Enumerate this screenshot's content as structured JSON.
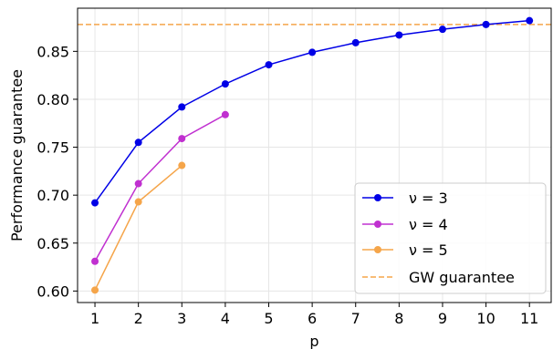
{
  "chart_data": {
    "type": "line",
    "xlabel": "p",
    "ylabel": "Performance guarantee",
    "x_ticks": [
      1,
      2,
      3,
      4,
      5,
      6,
      7,
      8,
      9,
      10,
      11
    ],
    "y_ticks": [
      0.6,
      0.65,
      0.7,
      0.75,
      0.8,
      0.85
    ],
    "xlim": [
      0.6,
      11.5
    ],
    "ylim": [
      0.588,
      0.895
    ],
    "grid": true,
    "legend_position": "bottom-right",
    "series": [
      {
        "name": "ν = 3",
        "color": "#0000e6",
        "marker": "circle",
        "x": [
          1,
          2,
          3,
          4,
          5,
          6,
          7,
          8,
          9,
          10,
          11
        ],
        "y": [
          0.692,
          0.755,
          0.792,
          0.816,
          0.836,
          0.849,
          0.859,
          0.867,
          0.873,
          0.878,
          0.882
        ]
      },
      {
        "name": "ν = 4",
        "color": "#c030d0",
        "marker": "circle",
        "x": [
          1,
          2,
          3,
          4
        ],
        "y": [
          0.631,
          0.712,
          0.759,
          0.784
        ]
      },
      {
        "name": "ν = 5",
        "color": "#f5a54a",
        "marker": "circle",
        "x": [
          1,
          2,
          3
        ],
        "y": [
          0.601,
          0.693,
          0.731
        ]
      }
    ],
    "reference_lines": [
      {
        "name": "GW guarantee",
        "color": "#f5a54a",
        "style": "dashed",
        "y": 0.878
      }
    ]
  }
}
